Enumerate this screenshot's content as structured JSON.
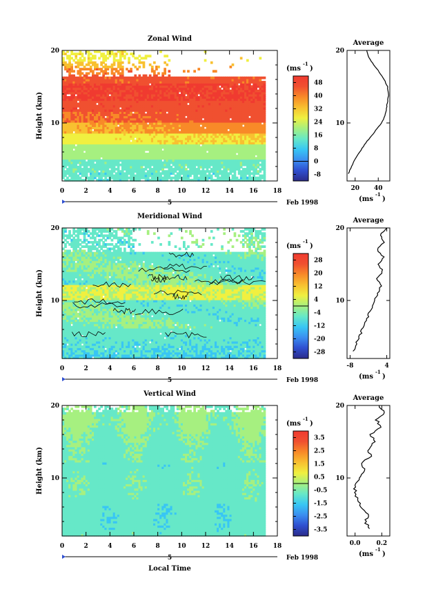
{
  "chart_data": [
    {
      "type": "heatmap",
      "title": "Zonal Wind",
      "ylabel": "Height (km)",
      "xlim": [
        0,
        18
      ],
      "ylim": [
        2,
        20
      ],
      "x_ticks": [
        "0",
        "2",
        "4",
        "6",
        "8",
        "10",
        "12",
        "14",
        "16",
        "18"
      ],
      "y_ticks": [
        "20",
        "10"
      ],
      "date_label": "5",
      "month_label": "Feb 1998",
      "unit_prefix": "(ms",
      "unit_sup": "-1",
      "unit_suffix": ")",
      "colorbar": {
        "ticks": [
          "48",
          "40",
          "32",
          "24",
          "16",
          "8",
          "0",
          "-8"
        ],
        "range": [
          -12,
          52
        ]
      },
      "profile": {
        "title": "Average",
        "xlabel": "(ms-1)",
        "x_ticks": [
          "20",
          "40"
        ],
        "xlim": [
          13,
          50
        ],
        "y_ticks": [
          "20",
          "10"
        ],
        "points": [
          [
            14,
            3
          ],
          [
            17,
            4
          ],
          [
            20,
            5
          ],
          [
            24,
            6
          ],
          [
            28,
            7
          ],
          [
            33,
            8
          ],
          [
            38,
            9
          ],
          [
            43,
            10
          ],
          [
            46,
            11
          ],
          [
            47,
            12
          ],
          [
            48,
            13
          ],
          [
            49,
            14
          ],
          [
            48,
            15
          ],
          [
            45,
            16
          ],
          [
            41,
            17
          ],
          [
            36,
            18
          ],
          [
            32,
            19
          ],
          [
            30,
            20
          ]
        ]
      }
    },
    {
      "type": "heatmap",
      "title": "Meridional Wind",
      "ylabel": "Height (km)",
      "xlim": [
        0,
        18
      ],
      "ylim": [
        2,
        20
      ],
      "x_ticks": [
        "0",
        "2",
        "4",
        "6",
        "8",
        "10",
        "12",
        "14",
        "16",
        "18"
      ],
      "y_ticks": [
        "20",
        "10"
      ],
      "date_label": "5",
      "month_label": "Feb 1998",
      "unit_prefix": "(ms",
      "unit_sup": "-1",
      "unit_suffix": ")",
      "colorbar": {
        "ticks": [
          "28",
          "20",
          "12",
          "4",
          "-4",
          "-12",
          "-20",
          "-28"
        ],
        "range": [
          -32,
          32
        ]
      },
      "profile": {
        "title": "Average",
        "xlabel": "(ms-1)",
        "x_ticks": [
          "-8",
          "4"
        ],
        "xlim": [
          -9,
          5
        ],
        "y_ticks": [
          "20",
          "10"
        ],
        "points": [
          [
            -7,
            3
          ],
          [
            -6,
            4
          ],
          [
            -5,
            5
          ],
          [
            -4,
            6
          ],
          [
            -3,
            7
          ],
          [
            -2,
            8
          ],
          [
            -1,
            9
          ],
          [
            0,
            10
          ],
          [
            1,
            11
          ],
          [
            2,
            12
          ],
          [
            1,
            13
          ],
          [
            2.5,
            14
          ],
          [
            1.5,
            15
          ],
          [
            3,
            16
          ],
          [
            1,
            17
          ],
          [
            3,
            18
          ],
          [
            2,
            19
          ],
          [
            4,
            20
          ]
        ]
      }
    },
    {
      "type": "heatmap",
      "title": "Vertical Wind",
      "ylabel": "Height (km)",
      "xlabel": "Local Time",
      "xlim": [
        0,
        18
      ],
      "ylim": [
        2,
        20
      ],
      "x_ticks": [
        "0",
        "2",
        "4",
        "6",
        "8",
        "10",
        "12",
        "14",
        "16",
        "18"
      ],
      "y_ticks": [
        "20",
        "10"
      ],
      "date_label": "5",
      "month_label": "Feb 1998",
      "unit_prefix": "(ms",
      "unit_sup": "-1",
      "unit_suffix": ")",
      "colorbar": {
        "ticks": [
          "3.5",
          "2.5",
          "1.5",
          "0.5",
          "-0.5",
          "-1.5",
          "-2.5",
          "-3.5"
        ],
        "range": [
          -4,
          4
        ]
      },
      "profile": {
        "title": "Average",
        "xlabel": "(ms-1)",
        "x_ticks": [
          "0.0",
          "0.2"
        ],
        "xlim": [
          -0.06,
          0.26
        ],
        "y_ticks": [
          "20",
          "10"
        ],
        "points": [
          [
            0.1,
            3
          ],
          [
            0.08,
            4
          ],
          [
            0.1,
            5
          ],
          [
            0.05,
            6
          ],
          [
            0.02,
            7
          ],
          [
            0.0,
            8
          ],
          [
            0.0,
            9
          ],
          [
            0.03,
            10
          ],
          [
            0.08,
            11
          ],
          [
            0.05,
            12
          ],
          [
            0.12,
            13
          ],
          [
            0.1,
            14
          ],
          [
            0.15,
            15
          ],
          [
            0.12,
            16
          ],
          [
            0.2,
            17
          ],
          [
            0.16,
            18
          ],
          [
            0.22,
            19
          ],
          [
            0.18,
            20
          ]
        ]
      }
    }
  ],
  "colors": {
    "colormap": [
      "#2b2b8a",
      "#2f4fd0",
      "#3b8ef0",
      "#38c6f4",
      "#66e8c8",
      "#a6f080",
      "#f0f040",
      "#f8c030",
      "#f88a28",
      "#f05030",
      "#f03a30"
    ]
  }
}
